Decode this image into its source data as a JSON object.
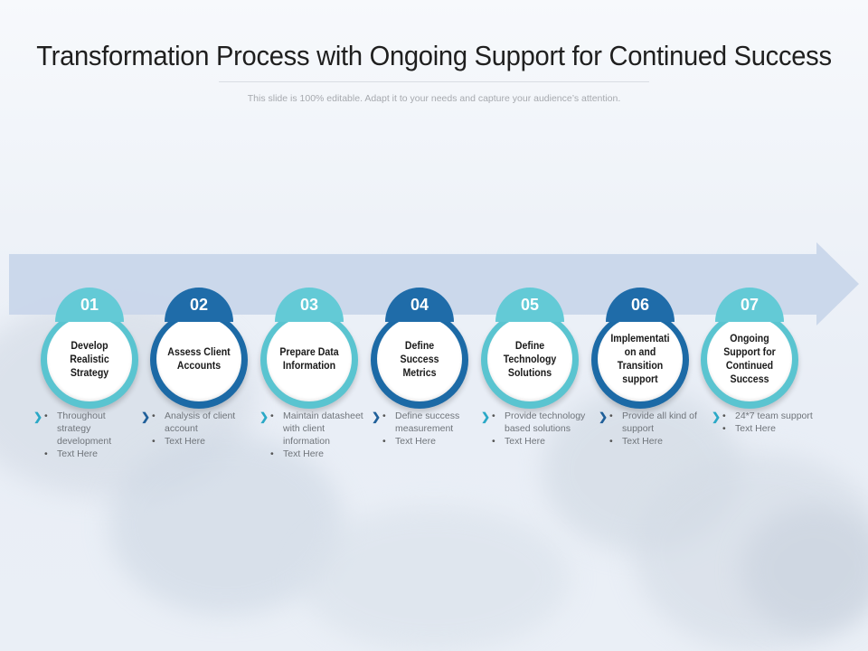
{
  "title": "Transformation Process with Ongoing Support for Continued Success",
  "subtitle": "This slide is 100% editable. Adapt it to your needs and capture your audience’s attention.",
  "colors": {
    "light": "#63cad6",
    "dark": "#1f6ca9",
    "arrow": "#c9d6ea",
    "chevron_light": "#2aa8c6",
    "chevron_dark": "#1f5f99"
  },
  "steps": [
    {
      "number": "01",
      "label": "Develop Realistic Strategy",
      "tone": "light",
      "bullets": [
        "Throughout strategy development",
        "Text Here"
      ]
    },
    {
      "number": "02",
      "label": "Assess Client Accounts",
      "tone": "dark",
      "bullets": [
        "Analysis of client account",
        "Text Here"
      ]
    },
    {
      "number": "03",
      "label": "Prepare Data Information",
      "tone": "light",
      "bullets": [
        "Maintain datasheet with client information",
        "Text Here"
      ]
    },
    {
      "number": "04",
      "label": "Define Success Metrics",
      "tone": "dark",
      "bullets": [
        "Define success measurement",
        "Text Here"
      ]
    },
    {
      "number": "05",
      "label": "Define Technology Solutions",
      "tone": "light",
      "bullets": [
        "Provide technology based solutions",
        "Text Here"
      ]
    },
    {
      "number": "06",
      "label": "Implementati on and Transition support",
      "tone": "dark",
      "bullets": [
        "Provide all kind of support",
        "Text Here"
      ]
    },
    {
      "number": "07",
      "label": "Ongoing Support for Continued Success",
      "tone": "light",
      "bullets": [
        "24*7 team support",
        "Text Here"
      ]
    }
  ]
}
